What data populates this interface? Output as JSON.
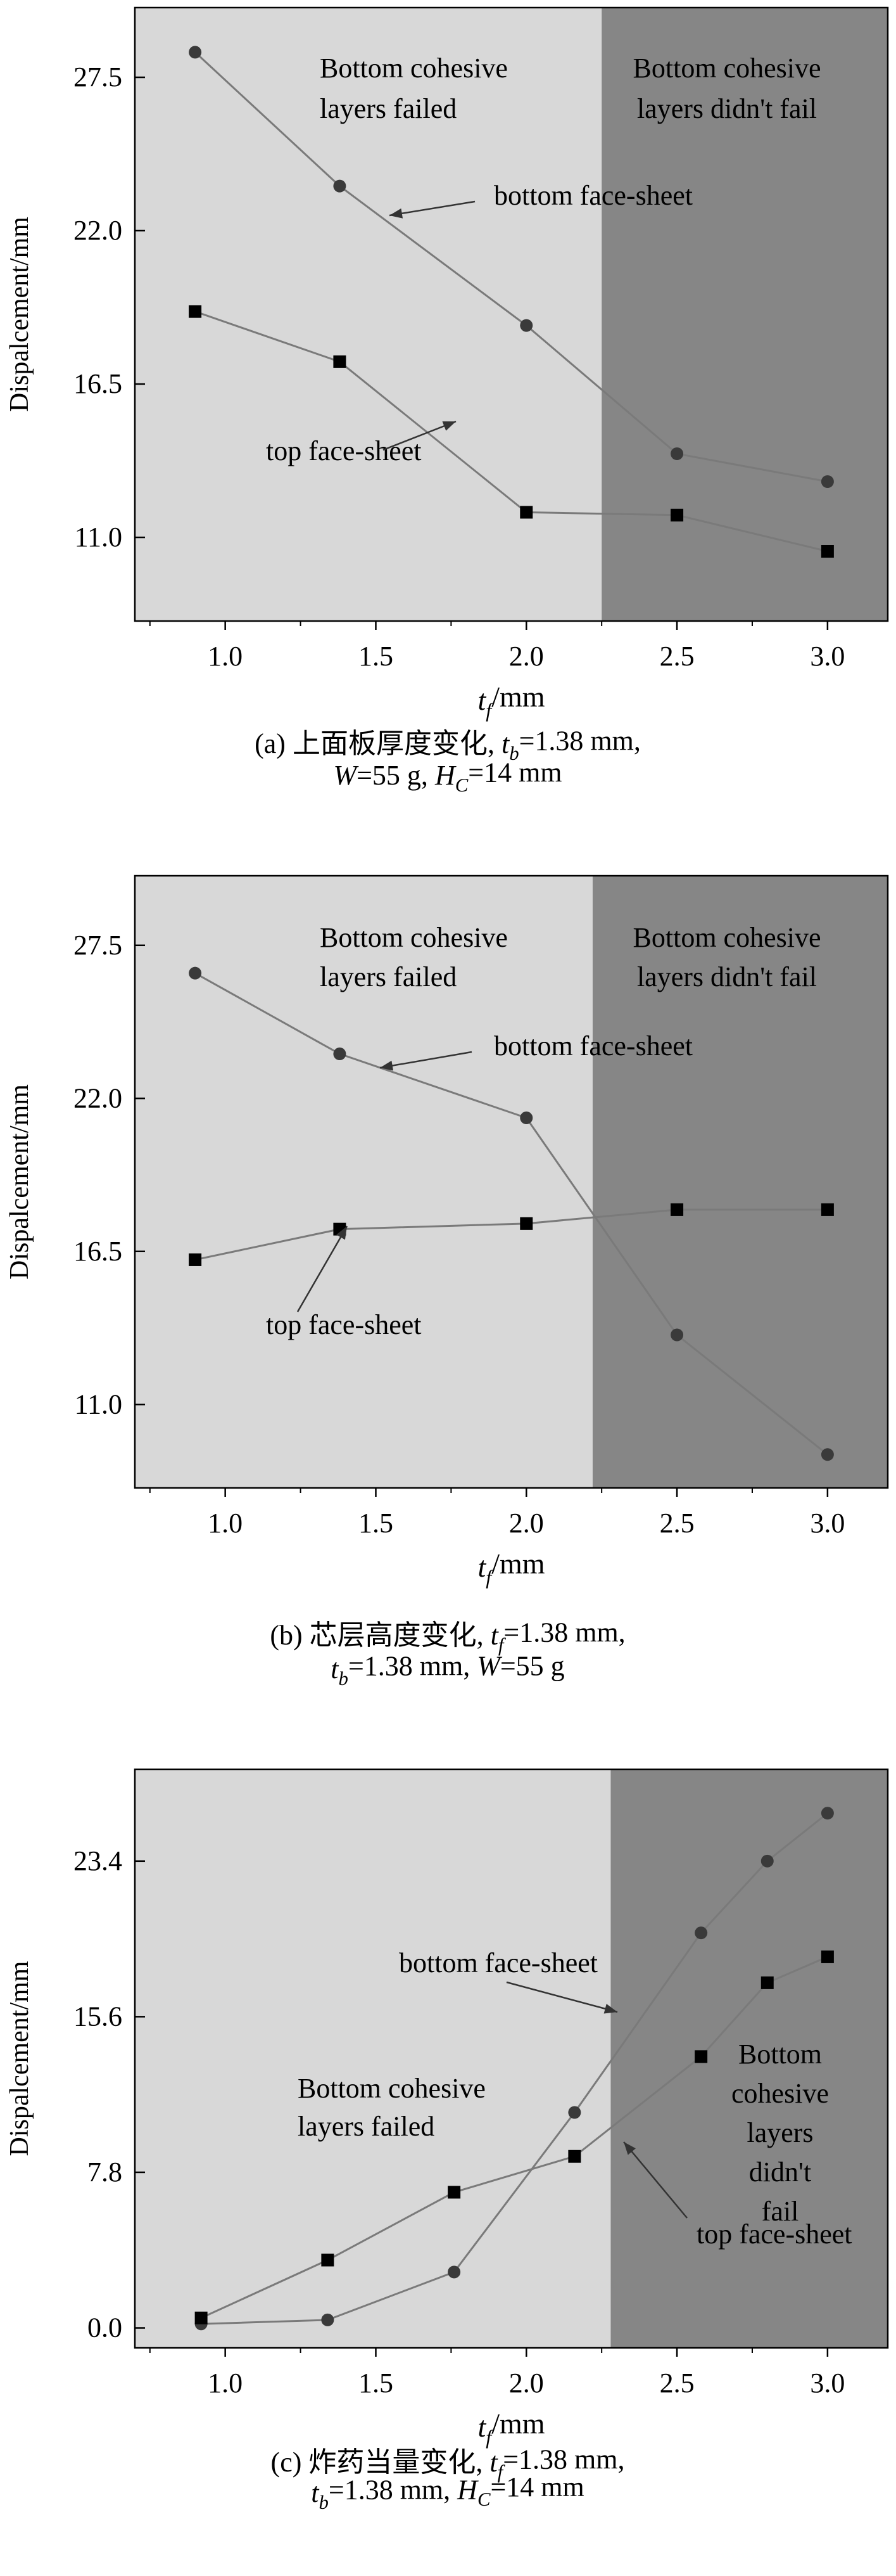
{
  "charts": [
    {
      "id": "a",
      "caption_line1": "(a) 上面板厚度变化, t_b=1.38 mm,",
      "caption_line2": "W=55 g, H_C=14 mm"
    },
    {
      "id": "b",
      "caption_line1": "(b) 芯层高度变化, t_f=1.38 mm,",
      "caption_line2": "t_b=1.38 mm, W=55 g"
    },
    {
      "id": "c",
      "caption_line1": "(c) 炸药当量变化, t_f=1.38 mm,",
      "caption_line2": "t_b=1.38 mm, H_C=14 mm"
    }
  ],
  "colors": {
    "region_failed": "#d8d8d8",
    "region_not_failed": "#868686",
    "line": "#7a7a7a",
    "marker": "#000000"
  },
  "chart_data": [
    {
      "type": "line",
      "xlabel": "t_f/mm",
      "ylabel": "Dispalcement/mm",
      "xlim": [
        0.7,
        3.2
      ],
      "ylim": [
        8.0,
        30.0
      ],
      "xticks": [
        "1.0",
        "1.5",
        "2.0",
        "2.5",
        "3.0"
      ],
      "yticks": [
        "11.0",
        "16.5",
        "22.0",
        "27.5"
      ],
      "region_boundary_x": 2.25,
      "region_labels": [
        "Bottom cohesive layers failed",
        "Bottom cohesive layers didn't fail"
      ],
      "series": [
        {
          "name": "bottom face-sheet",
          "marker": "circle",
          "x": [
            0.9,
            1.38,
            2.0,
            2.5,
            3.0
          ],
          "y": [
            28.4,
            23.6,
            18.6,
            14.0,
            13.0
          ]
        },
        {
          "name": "top face-sheet",
          "marker": "square",
          "x": [
            0.9,
            1.38,
            2.0,
            2.5,
            3.0
          ],
          "y": [
            19.1,
            17.3,
            11.9,
            11.8,
            10.5
          ]
        }
      ]
    },
    {
      "type": "line",
      "xlabel": "t_f/mm",
      "ylabel": "Dispalcement/mm",
      "xlim": [
        0.7,
        3.2
      ],
      "ylim": [
        8.0,
        30.0
      ],
      "xticks": [
        "1.0",
        "1.5",
        "2.0",
        "2.5",
        "3.0"
      ],
      "yticks": [
        "11.0",
        "16.5",
        "22.0",
        "27.5"
      ],
      "region_boundary_x": 2.22,
      "region_labels": [
        "Bottom cohesive layers failed",
        "Bottom cohesive layers didn't fail"
      ],
      "series": [
        {
          "name": "bottom face-sheet",
          "marker": "circle",
          "x": [
            0.9,
            1.38,
            2.0,
            2.5,
            3.0
          ],
          "y": [
            26.5,
            23.6,
            21.3,
            13.5,
            9.2
          ]
        },
        {
          "name": "top face-sheet",
          "marker": "square",
          "x": [
            0.9,
            1.38,
            2.0,
            2.5,
            3.0
          ],
          "y": [
            16.2,
            17.3,
            17.5,
            18.0,
            18.0
          ]
        }
      ]
    },
    {
      "type": "line",
      "xlabel": "t_f/mm",
      "ylabel": "Dispalcement/mm",
      "xlim": [
        0.7,
        3.2
      ],
      "ylim": [
        -1.0,
        28.0
      ],
      "xticks": [
        "1.0",
        "1.5",
        "2.0",
        "2.5",
        "3.0"
      ],
      "yticks": [
        "0.0",
        "7.8",
        "15.6",
        "23.4"
      ],
      "region_boundary_x": 2.28,
      "region_labels": [
        "Bottom cohesive layers failed",
        "Bottom cohesive layers didn't fail"
      ],
      "series": [
        {
          "name": "bottom face-sheet",
          "marker": "circle",
          "x": [
            0.92,
            1.34,
            1.76,
            2.16,
            2.58,
            2.8,
            3.0
          ],
          "y": [
            0.2,
            0.4,
            2.8,
            10.8,
            19.8,
            23.4,
            25.8
          ]
        },
        {
          "name": "top face-sheet",
          "marker": "square",
          "x": [
            0.92,
            1.34,
            1.76,
            2.16,
            2.58,
            2.8,
            3.0
          ],
          "y": [
            0.5,
            3.4,
            6.8,
            8.6,
            13.6,
            17.3,
            18.6
          ]
        }
      ]
    }
  ]
}
